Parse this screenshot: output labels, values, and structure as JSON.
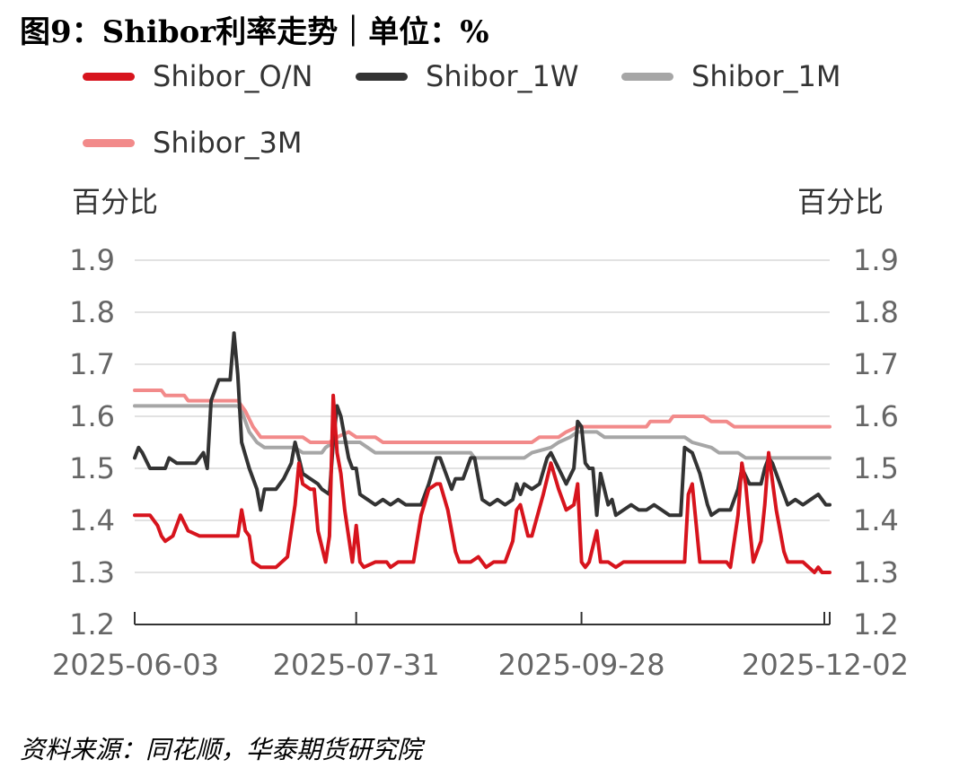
{
  "title": "图9：Shibor利率走势｜单位：%",
  "source": "资料来源：同花顺，华泰期货研究院",
  "chart_data": {
    "type": "line",
    "y_unit_left": "百分比",
    "y_unit_right": "百分比",
    "ylim": [
      1.2,
      1.9
    ],
    "yticks": [
      "1.9",
      "1.8",
      "1.7",
      "1.6",
      "1.5",
      "1.4",
      "1.3",
      "1.2"
    ],
    "xticks": [
      "2025-06-03",
      "2025-07-31",
      "2025-09-28",
      "2025-12-02"
    ],
    "x_range": [
      "2025-06-03",
      "2025-12-02"
    ],
    "grid": true,
    "legend": "top",
    "series": [
      {
        "name": "Shibor_O/N",
        "color": "#d7141d",
        "points": [
          [
            "2025-06-03",
            1.41
          ],
          [
            "2025-06-05",
            1.41
          ],
          [
            "2025-06-07",
            1.41
          ],
          [
            "2025-06-09",
            1.39
          ],
          [
            "2025-06-10",
            1.37
          ],
          [
            "2025-06-11",
            1.36
          ],
          [
            "2025-06-13",
            1.37
          ],
          [
            "2025-06-15",
            1.41
          ],
          [
            "2025-06-17",
            1.38
          ],
          [
            "2025-06-20",
            1.37
          ],
          [
            "2025-06-25",
            1.37
          ],
          [
            "2025-06-30",
            1.37
          ],
          [
            "2025-07-01",
            1.42
          ],
          [
            "2025-07-02",
            1.38
          ],
          [
            "2025-07-03",
            1.37
          ],
          [
            "2025-07-04",
            1.32
          ],
          [
            "2025-07-06",
            1.31
          ],
          [
            "2025-07-10",
            1.31
          ],
          [
            "2025-07-13",
            1.33
          ],
          [
            "2025-07-15",
            1.43
          ],
          [
            "2025-07-16",
            1.51
          ],
          [
            "2025-07-17",
            1.47
          ],
          [
            "2025-07-19",
            1.46
          ],
          [
            "2025-07-20",
            1.46
          ],
          [
            "2025-07-21",
            1.38
          ],
          [
            "2025-07-23",
            1.32
          ],
          [
            "2025-07-24",
            1.37
          ],
          [
            "2025-07-25",
            1.64
          ],
          [
            "2025-07-26",
            1.53
          ],
          [
            "2025-07-27",
            1.49
          ],
          [
            "2025-07-28",
            1.42
          ],
          [
            "2025-07-30",
            1.32
          ],
          [
            "2025-07-31",
            1.39
          ],
          [
            "2025-08-01",
            1.32
          ],
          [
            "2025-08-02",
            1.31
          ],
          [
            "2025-08-05",
            1.32
          ],
          [
            "2025-08-08",
            1.32
          ],
          [
            "2025-08-09",
            1.31
          ],
          [
            "2025-08-11",
            1.32
          ],
          [
            "2025-08-15",
            1.32
          ],
          [
            "2025-08-17",
            1.41
          ],
          [
            "2025-08-19",
            1.46
          ],
          [
            "2025-08-21",
            1.47
          ],
          [
            "2025-08-22",
            1.47
          ],
          [
            "2025-08-24",
            1.42
          ],
          [
            "2025-08-26",
            1.34
          ],
          [
            "2025-08-27",
            1.32
          ],
          [
            "2025-08-30",
            1.32
          ],
          [
            "2025-09-01",
            1.33
          ],
          [
            "2025-09-03",
            1.31
          ],
          [
            "2025-09-05",
            1.32
          ],
          [
            "2025-09-08",
            1.32
          ],
          [
            "2025-09-10",
            1.36
          ],
          [
            "2025-09-11",
            1.42
          ],
          [
            "2025-09-12",
            1.43
          ],
          [
            "2025-09-14",
            1.37
          ],
          [
            "2025-09-15",
            1.37
          ],
          [
            "2025-09-18",
            1.45
          ],
          [
            "2025-09-20",
            1.51
          ],
          [
            "2025-09-22",
            1.46
          ],
          [
            "2025-09-24",
            1.42
          ],
          [
            "2025-09-26",
            1.43
          ],
          [
            "2025-09-27",
            1.47
          ],
          [
            "2025-09-28",
            1.32
          ],
          [
            "2025-09-29",
            1.31
          ],
          [
            "2025-09-30",
            1.32
          ],
          [
            "2025-10-02",
            1.38
          ],
          [
            "2025-10-03",
            1.32
          ],
          [
            "2025-10-05",
            1.32
          ],
          [
            "2025-10-07",
            1.31
          ],
          [
            "2025-10-09",
            1.32
          ],
          [
            "2025-10-15",
            1.32
          ],
          [
            "2025-10-25",
            1.32
          ],
          [
            "2025-10-26",
            1.45
          ],
          [
            "2025-10-27",
            1.47
          ],
          [
            "2025-10-29",
            1.32
          ],
          [
            "2025-11-01",
            1.32
          ],
          [
            "2025-11-05",
            1.32
          ],
          [
            "2025-11-06",
            1.31
          ],
          [
            "2025-11-08",
            1.41
          ],
          [
            "2025-11-09",
            1.51
          ],
          [
            "2025-11-10",
            1.47
          ],
          [
            "2025-11-11",
            1.39
          ],
          [
            "2025-11-12",
            1.32
          ],
          [
            "2025-11-14",
            1.36
          ],
          [
            "2025-11-15",
            1.43
          ],
          [
            "2025-11-16",
            1.53
          ],
          [
            "2025-11-18",
            1.42
          ],
          [
            "2025-11-20",
            1.34
          ],
          [
            "2025-11-21",
            1.32
          ],
          [
            "2025-11-25",
            1.32
          ],
          [
            "2025-11-28",
            1.3
          ],
          [
            "2025-11-29",
            1.31
          ],
          [
            "2025-11-30",
            1.3
          ],
          [
            "2025-12-02",
            1.3
          ]
        ]
      },
      {
        "name": "Shibor_1W",
        "color": "#333333",
        "points": [
          [
            "2025-06-03",
            1.52
          ],
          [
            "2025-06-04",
            1.54
          ],
          [
            "2025-06-05",
            1.53
          ],
          [
            "2025-06-07",
            1.5
          ],
          [
            "2025-06-09",
            1.5
          ],
          [
            "2025-06-11",
            1.5
          ],
          [
            "2025-06-12",
            1.52
          ],
          [
            "2025-06-14",
            1.51
          ],
          [
            "2025-06-17",
            1.51
          ],
          [
            "2025-06-19",
            1.51
          ],
          [
            "2025-06-21",
            1.53
          ],
          [
            "2025-06-22",
            1.5
          ],
          [
            "2025-06-23",
            1.63
          ],
          [
            "2025-06-25",
            1.67
          ],
          [
            "2025-06-28",
            1.67
          ],
          [
            "2025-06-29",
            1.76
          ],
          [
            "2025-06-30",
            1.68
          ],
          [
            "2025-07-01",
            1.55
          ],
          [
            "2025-07-03",
            1.5
          ],
          [
            "2025-07-05",
            1.46
          ],
          [
            "2025-07-06",
            1.42
          ],
          [
            "2025-07-07",
            1.46
          ],
          [
            "2025-07-10",
            1.46
          ],
          [
            "2025-07-12",
            1.48
          ],
          [
            "2025-07-14",
            1.51
          ],
          [
            "2025-07-15",
            1.55
          ],
          [
            "2025-07-17",
            1.49
          ],
          [
            "2025-07-19",
            1.48
          ],
          [
            "2025-07-21",
            1.47
          ],
          [
            "2025-07-22",
            1.46
          ],
          [
            "2025-07-24",
            1.45
          ],
          [
            "2025-07-25",
            1.55
          ],
          [
            "2025-07-26",
            1.62
          ],
          [
            "2025-07-27",
            1.6
          ],
          [
            "2025-07-28",
            1.56
          ],
          [
            "2025-07-29",
            1.52
          ],
          [
            "2025-07-30",
            1.5
          ],
          [
            "2025-07-31",
            1.5
          ],
          [
            "2025-08-01",
            1.45
          ],
          [
            "2025-08-03",
            1.44
          ],
          [
            "2025-08-05",
            1.43
          ],
          [
            "2025-08-07",
            1.44
          ],
          [
            "2025-08-09",
            1.43
          ],
          [
            "2025-08-11",
            1.44
          ],
          [
            "2025-08-13",
            1.43
          ],
          [
            "2025-08-17",
            1.43
          ],
          [
            "2025-08-19",
            1.47
          ],
          [
            "2025-08-21",
            1.52
          ],
          [
            "2025-08-22",
            1.52
          ],
          [
            "2025-08-24",
            1.48
          ],
          [
            "2025-08-25",
            1.46
          ],
          [
            "2025-08-26",
            1.48
          ],
          [
            "2025-08-28",
            1.48
          ],
          [
            "2025-08-30",
            1.52
          ],
          [
            "2025-08-31",
            1.52
          ],
          [
            "2025-09-02",
            1.44
          ],
          [
            "2025-09-04",
            1.43
          ],
          [
            "2025-09-06",
            1.44
          ],
          [
            "2025-09-08",
            1.43
          ],
          [
            "2025-09-10",
            1.44
          ],
          [
            "2025-09-11",
            1.47
          ],
          [
            "2025-09-12",
            1.45
          ],
          [
            "2025-09-13",
            1.47
          ],
          [
            "2025-09-15",
            1.46
          ],
          [
            "2025-09-17",
            1.47
          ],
          [
            "2025-09-19",
            1.52
          ],
          [
            "2025-09-20",
            1.53
          ],
          [
            "2025-09-22",
            1.5
          ],
          [
            "2025-09-24",
            1.47
          ],
          [
            "2025-09-26",
            1.5
          ],
          [
            "2025-09-27",
            1.59
          ],
          [
            "2025-09-28",
            1.58
          ],
          [
            "2025-09-29",
            1.51
          ],
          [
            "2025-09-30",
            1.5
          ],
          [
            "2025-10-01",
            1.5
          ],
          [
            "2025-10-02",
            1.41
          ],
          [
            "2025-10-03",
            1.49
          ],
          [
            "2025-10-05",
            1.43
          ],
          [
            "2025-10-06",
            1.44
          ],
          [
            "2025-10-07",
            1.41
          ],
          [
            "2025-10-09",
            1.42
          ],
          [
            "2025-10-11",
            1.43
          ],
          [
            "2025-10-13",
            1.42
          ],
          [
            "2025-10-15",
            1.42
          ],
          [
            "2025-10-17",
            1.43
          ],
          [
            "2025-10-19",
            1.42
          ],
          [
            "2025-10-21",
            1.41
          ],
          [
            "2025-10-24",
            1.41
          ],
          [
            "2025-10-25",
            1.54
          ],
          [
            "2025-10-27",
            1.53
          ],
          [
            "2025-10-29",
            1.49
          ],
          [
            "2025-10-31",
            1.43
          ],
          [
            "2025-11-01",
            1.41
          ],
          [
            "2025-11-03",
            1.42
          ],
          [
            "2025-11-06",
            1.42
          ],
          [
            "2025-11-08",
            1.46
          ],
          [
            "2025-11-09",
            1.5
          ],
          [
            "2025-11-11",
            1.47
          ],
          [
            "2025-11-14",
            1.47
          ],
          [
            "2025-11-15",
            1.5
          ],
          [
            "2025-11-16",
            1.52
          ],
          [
            "2025-11-17",
            1.51
          ],
          [
            "2025-11-19",
            1.47
          ],
          [
            "2025-11-21",
            1.43
          ],
          [
            "2025-11-23",
            1.44
          ],
          [
            "2025-11-25",
            1.43
          ],
          [
            "2025-11-27",
            1.44
          ],
          [
            "2025-11-29",
            1.45
          ],
          [
            "2025-11-30",
            1.44
          ],
          [
            "2025-12-01",
            1.43
          ],
          [
            "2025-12-02",
            1.43
          ]
        ]
      },
      {
        "name": "Shibor_1M",
        "color": "#a6a6a6",
        "points": [
          [
            "2025-06-03",
            1.62
          ],
          [
            "2025-06-30",
            1.62
          ],
          [
            "2025-07-01",
            1.61
          ],
          [
            "2025-07-02",
            1.59
          ],
          [
            "2025-07-03",
            1.57
          ],
          [
            "2025-07-05",
            1.55
          ],
          [
            "2025-07-07",
            1.54
          ],
          [
            "2025-07-15",
            1.54
          ],
          [
            "2025-07-17",
            1.53
          ],
          [
            "2025-07-22",
            1.53
          ],
          [
            "2025-07-23",
            1.54
          ],
          [
            "2025-07-25",
            1.55
          ],
          [
            "2025-08-01",
            1.55
          ],
          [
            "2025-08-03",
            1.54
          ],
          [
            "2025-08-05",
            1.53
          ],
          [
            "2025-08-30",
            1.53
          ],
          [
            "2025-08-31",
            1.52
          ],
          [
            "2025-09-13",
            1.52
          ],
          [
            "2025-09-15",
            1.53
          ],
          [
            "2025-09-20",
            1.54
          ],
          [
            "2025-09-22",
            1.55
          ],
          [
            "2025-09-25",
            1.56
          ],
          [
            "2025-09-27",
            1.57
          ],
          [
            "2025-10-02",
            1.57
          ],
          [
            "2025-10-04",
            1.56
          ],
          [
            "2025-10-25",
            1.56
          ],
          [
            "2025-10-27",
            1.55
          ],
          [
            "2025-11-01",
            1.54
          ],
          [
            "2025-11-03",
            1.53
          ],
          [
            "2025-11-08",
            1.53
          ],
          [
            "2025-11-10",
            1.52
          ],
          [
            "2025-12-02",
            1.52
          ]
        ]
      },
      {
        "name": "Shibor_3M",
        "color": "#f28a8a",
        "points": [
          [
            "2025-06-03",
            1.65
          ],
          [
            "2025-06-10",
            1.65
          ],
          [
            "2025-06-11",
            1.64
          ],
          [
            "2025-06-16",
            1.64
          ],
          [
            "2025-06-17",
            1.63
          ],
          [
            "2025-06-30",
            1.63
          ],
          [
            "2025-07-02",
            1.61
          ],
          [
            "2025-07-04",
            1.58
          ],
          [
            "2025-07-06",
            1.56
          ],
          [
            "2025-07-17",
            1.56
          ],
          [
            "2025-07-19",
            1.55
          ],
          [
            "2025-07-24",
            1.55
          ],
          [
            "2025-07-26",
            1.56
          ],
          [
            "2025-07-29",
            1.57
          ],
          [
            "2025-07-31",
            1.56
          ],
          [
            "2025-08-05",
            1.56
          ],
          [
            "2025-08-07",
            1.55
          ],
          [
            "2025-09-15",
            1.55
          ],
          [
            "2025-09-17",
            1.56
          ],
          [
            "2025-09-22",
            1.56
          ],
          [
            "2025-09-24",
            1.57
          ],
          [
            "2025-09-27",
            1.58
          ],
          [
            "2025-10-15",
            1.58
          ],
          [
            "2025-10-16",
            1.59
          ],
          [
            "2025-10-21",
            1.59
          ],
          [
            "2025-10-22",
            1.6
          ],
          [
            "2025-10-30",
            1.6
          ],
          [
            "2025-11-01",
            1.59
          ],
          [
            "2025-11-05",
            1.59
          ],
          [
            "2025-11-07",
            1.58
          ],
          [
            "2025-12-02",
            1.58
          ]
        ]
      }
    ]
  }
}
